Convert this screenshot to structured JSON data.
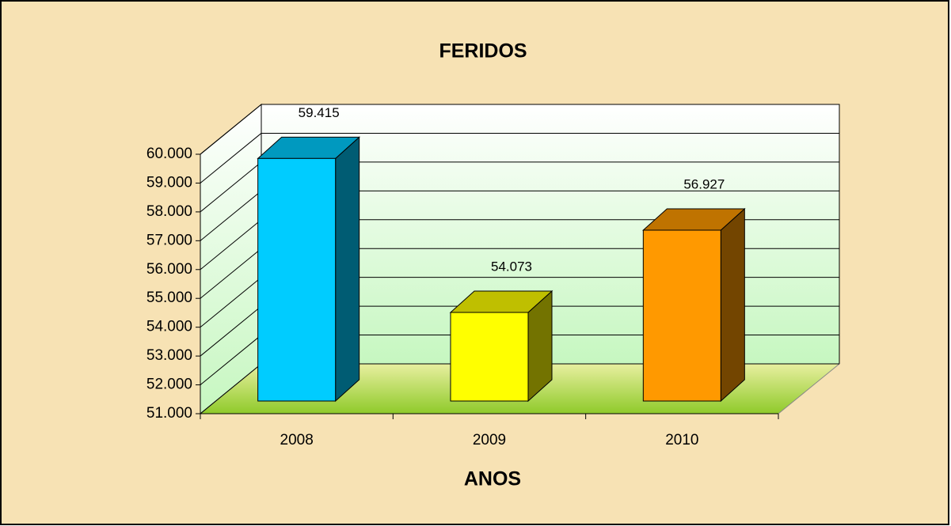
{
  "chart_data": {
    "type": "bar3d",
    "title": "FERIDOS",
    "x_label": "ANOS",
    "categories": [
      "2008",
      "2009",
      "2010"
    ],
    "values": [
      59415,
      54073,
      56927
    ],
    "value_labels": [
      "59.415",
      "54.073",
      "56.927"
    ],
    "colors": [
      "#00ccff",
      "#ffff00",
      "#ff9900"
    ],
    "ylim": [
      51000,
      60000
    ],
    "yticks": [
      {
        "value": 51000,
        "label": "51.000"
      },
      {
        "value": 52000,
        "label": "52.000"
      },
      {
        "value": 53000,
        "label": "53.000"
      },
      {
        "value": 54000,
        "label": "54.000"
      },
      {
        "value": 55000,
        "label": "55.000"
      },
      {
        "value": 56000,
        "label": "56.000"
      },
      {
        "value": 57000,
        "label": "57.000"
      },
      {
        "value": 58000,
        "label": "58.000"
      },
      {
        "value": 59000,
        "label": "59.000"
      },
      {
        "value": 60000,
        "label": "60.000"
      }
    ],
    "grid": true
  }
}
